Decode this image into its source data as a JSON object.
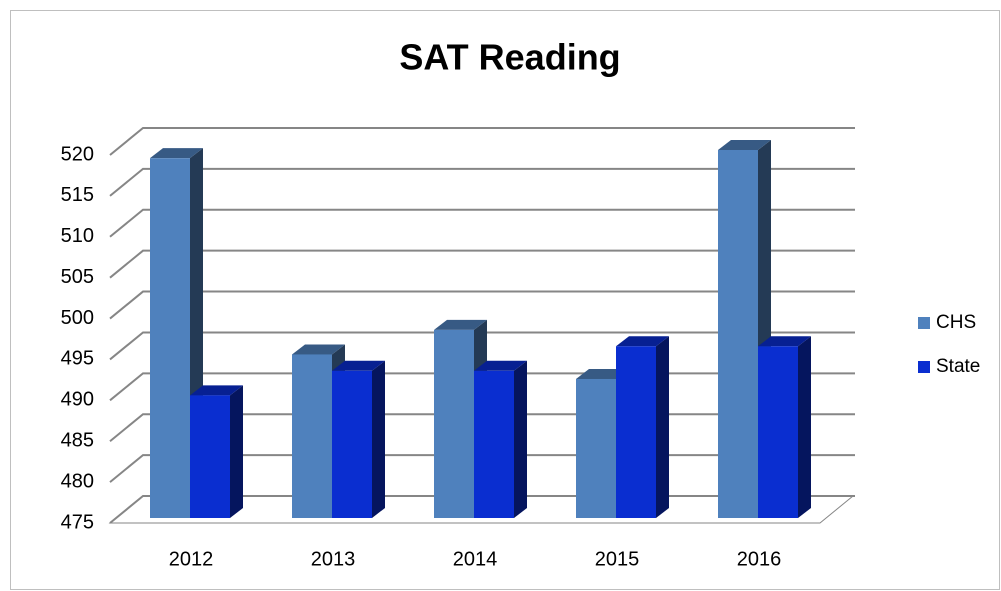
{
  "chart_data": {
    "type": "bar3d",
    "title": "SAT Reading",
    "categories": [
      "2012",
      "2013",
      "2014",
      "2015",
      "2016"
    ],
    "series": [
      {
        "name": "CHS",
        "color": "#4f81bd",
        "values": [
          519,
          495,
          498,
          492,
          520
        ]
      },
      {
        "name": "State",
        "color": "#0a2ed0",
        "values": [
          490,
          493,
          493,
          496,
          496
        ]
      }
    ],
    "ylim": [
      475,
      520
    ],
    "yticks": [
      475,
      480,
      485,
      490,
      495,
      500,
      505,
      510,
      515,
      520
    ],
    "grid": true,
    "legend": "right"
  }
}
